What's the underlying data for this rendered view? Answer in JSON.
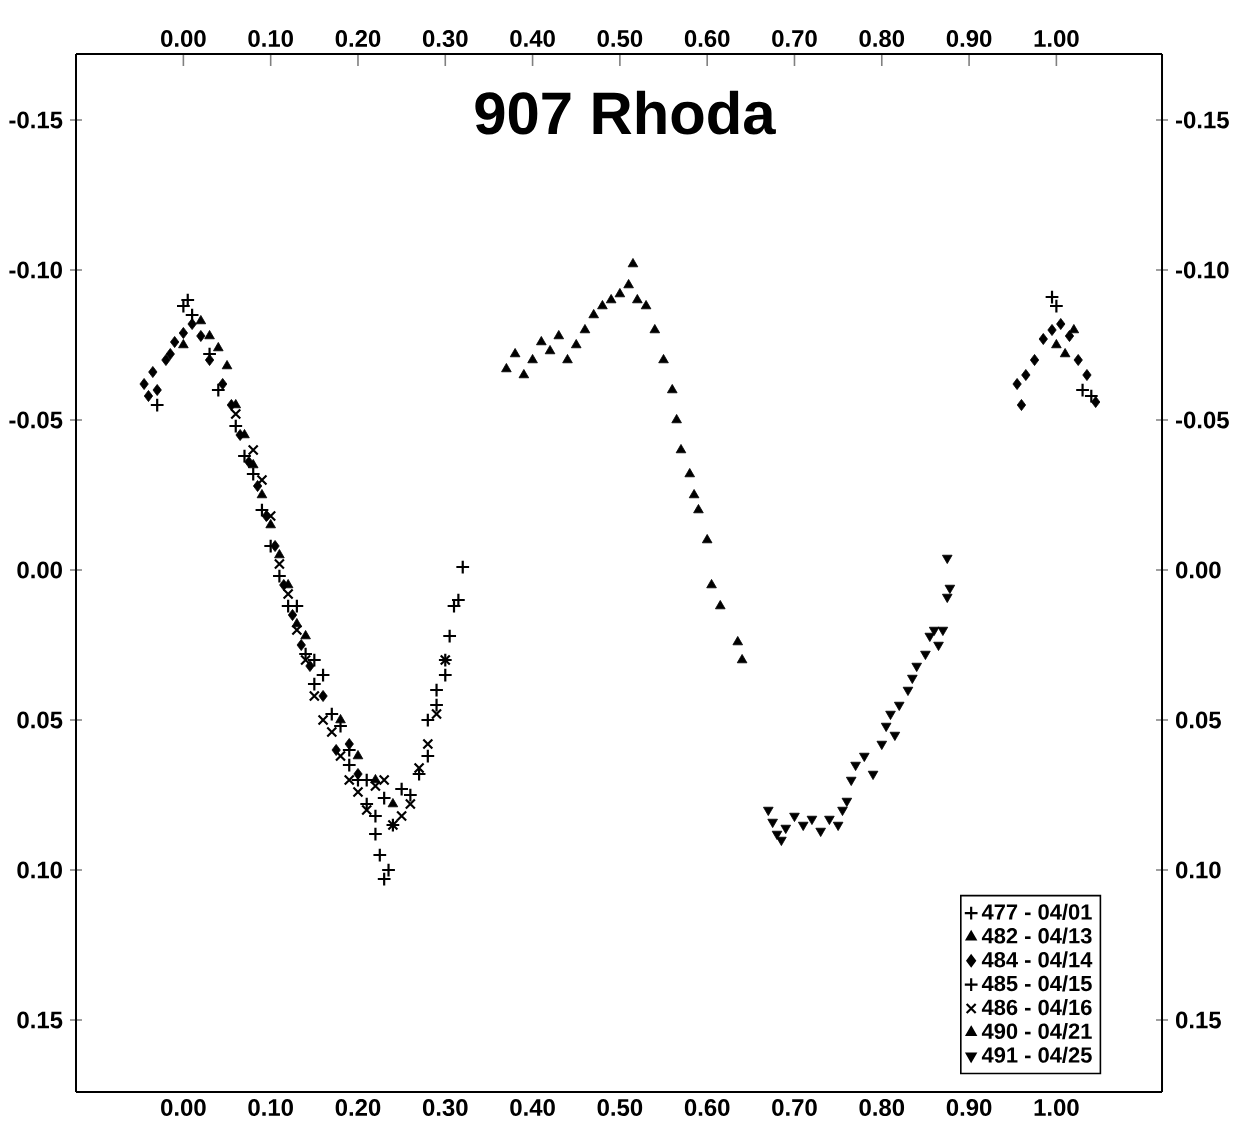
{
  "chart_data": {
    "type": "scatter",
    "title": "907 Rhoda",
    "xlim": [
      -0.123,
      1.121
    ],
    "ylim": [
      0.174,
      -0.172
    ],
    "xticks": [
      {
        "value": 0,
        "label": "0.00"
      },
      {
        "value": 0.1,
        "label": "0.10"
      },
      {
        "value": 0.2,
        "label": "0.20"
      },
      {
        "value": 0.3,
        "label": "0.30"
      },
      {
        "value": 0.4,
        "label": "0.40"
      },
      {
        "value": 0.5,
        "label": "0.50"
      },
      {
        "value": 0.6,
        "label": "0.60"
      },
      {
        "value": 0.7,
        "label": "0.70"
      },
      {
        "value": 0.8,
        "label": "0.80"
      },
      {
        "value": 0.9,
        "label": "0.90"
      },
      {
        "value": 1.0,
        "label": "1.00"
      }
    ],
    "yticks": [
      {
        "value": -0.15,
        "label": "-0.15"
      },
      {
        "value": -0.1,
        "label": "-0.10"
      },
      {
        "value": -0.05,
        "label": "-0.05"
      },
      {
        "value": 0,
        "label": "0.00"
      },
      {
        "value": 0.05,
        "label": "0.05"
      },
      {
        "value": 0.1,
        "label": "0.10"
      },
      {
        "value": 0.15,
        "label": "0.15"
      }
    ],
    "x2lim": [
      -0.123,
      1.121
    ],
    "y2lim": [
      0.174,
      -0.172
    ],
    "x2ticks": [
      {
        "value": 0,
        "label": "0.00"
      },
      {
        "value": 0.1,
        "label": "0.10"
      },
      {
        "value": 0.2,
        "label": "0.20"
      },
      {
        "value": 0.3,
        "label": "0.30"
      },
      {
        "value": 0.4,
        "label": "0.40"
      },
      {
        "value": 0.5,
        "label": "0.50"
      },
      {
        "value": 0.6,
        "label": "0.60"
      },
      {
        "value": 0.7,
        "label": "0.70"
      },
      {
        "value": 0.8,
        "label": "0.80"
      },
      {
        "value": 0.9,
        "label": "0.90"
      },
      {
        "value": 1.0,
        "label": "1.00"
      }
    ],
    "y2ticks": [
      {
        "value": -0.15,
        "label": "-0.15"
      },
      {
        "value": -0.1,
        "label": "-0.10"
      },
      {
        "value": -0.05,
        "label": "-0.05"
      },
      {
        "value": 0,
        "label": "0.00"
      },
      {
        "value": 0.05,
        "label": "0.05"
      },
      {
        "value": 0.1,
        "label": "0.10"
      },
      {
        "value": 0.15,
        "label": "0.15"
      }
    ],
    "legend": "bottom right",
    "series": [
      {
        "name": "477 - 04/01",
        "color": "#000000",
        "marker": "plus",
        "x": [
          -0.03,
          0.0,
          0.005,
          0.01,
          0.03,
          0.07,
          0.09,
          0.12,
          0.15,
          0.17,
          0.19,
          0.21,
          0.22,
          0.225,
          0.23,
          0.235,
          0.24,
          0.26,
          0.28,
          0.29,
          0.3,
          0.305,
          0.31,
          0.315,
          0.32,
          0.995,
          1.0,
          1.04,
          1.03
        ],
        "values": [
          -0.055,
          -0.088,
          -0.09,
          -0.085,
          -0.072,
          -0.038,
          -0.02,
          0.012,
          0.03,
          0.048,
          0.06,
          0.07,
          0.088,
          0.095,
          0.103,
          0.1,
          0.085,
          0.075,
          0.062,
          0.04,
          0.03,
          0.022,
          0.012,
          0.01,
          -0.001,
          -0.091,
          -0.088,
          -0.058,
          -0.06
        ]
      },
      {
        "name": "482 - 04/13",
        "color": "#000000",
        "marker": "triangle",
        "x": [
          0.0,
          0.02,
          0.03,
          0.04,
          0.05,
          0.06,
          0.07,
          0.08,
          0.09,
          0.1,
          0.11,
          0.12,
          0.13,
          0.14,
          0.16,
          0.18,
          0.2,
          0.22,
          0.24,
          1.0,
          1.02,
          1.01
        ],
        "values": [
          -0.075,
          -0.083,
          -0.078,
          -0.074,
          -0.068,
          -0.055,
          -0.045,
          -0.035,
          -0.025,
          -0.015,
          -0.005,
          0.005,
          0.018,
          0.022,
          null,
          0.05,
          0.062,
          0.07,
          0.078,
          -0.075,
          -0.08,
          -0.072
        ]
      },
      {
        "name": "484 - 04/14",
        "color": "#000000",
        "marker": "diamond",
        "x": [
          -0.045,
          -0.04,
          -0.035,
          -0.03,
          -0.02,
          -0.015,
          -0.01,
          0.0,
          0.01,
          0.02,
          0.03,
          0.045,
          0.055,
          0.065,
          0.075,
          0.085,
          0.095,
          0.105,
          0.115,
          0.125,
          0.135,
          0.145,
          0.16,
          0.175,
          0.19,
          0.2,
          0.955,
          0.96,
          0.965,
          0.975,
          0.985,
          0.995,
          1.005,
          1.015,
          1.025,
          1.035,
          1.045
        ],
        "values": [
          -0.062,
          -0.058,
          -0.066,
          -0.06,
          -0.07,
          -0.072,
          -0.076,
          -0.079,
          -0.082,
          -0.078,
          -0.07,
          -0.062,
          -0.055,
          -0.045,
          -0.036,
          -0.028,
          -0.018,
          -0.008,
          0.005,
          0.015,
          0.025,
          0.032,
          0.042,
          0.06,
          0.058,
          0.068,
          -0.062,
          -0.055,
          -0.065,
          -0.07,
          -0.077,
          -0.08,
          -0.082,
          -0.078,
          -0.07,
          -0.065,
          -0.056
        ]
      },
      {
        "name": "485 - 04/15",
        "color": "#000000",
        "marker": "plus",
        "x": [
          0.04,
          0.06,
          0.08,
          0.1,
          0.11,
          0.13,
          0.14,
          0.15,
          0.16,
          0.18,
          0.19,
          0.2,
          0.21,
          0.22,
          0.23,
          0.25,
          0.27,
          0.28,
          0.29,
          0.3
        ],
        "values": [
          -0.06,
          -0.048,
          -0.032,
          -0.008,
          0.002,
          0.012,
          0.028,
          0.038,
          0.035,
          0.052,
          0.065,
          0.07,
          0.078,
          0.082,
          0.076,
          0.073,
          0.068,
          0.05,
          0.045,
          0.035
        ]
      },
      {
        "name": "486 - 04/16",
        "color": "#000000",
        "marker": "cross",
        "x": [
          0.06,
          0.08,
          0.09,
          0.1,
          0.11,
          0.12,
          0.13,
          0.14,
          0.15,
          0.16,
          0.17,
          0.18,
          0.19,
          0.2,
          0.21,
          0.22,
          0.23,
          0.24,
          0.25,
          0.26,
          0.27,
          0.28,
          0.29,
          0.3
        ],
        "values": [
          -0.052,
          -0.04,
          -0.03,
          -0.018,
          -0.002,
          0.008,
          0.02,
          0.03,
          0.042,
          0.05,
          0.054,
          0.062,
          0.07,
          0.074,
          0.08,
          0.072,
          0.07,
          0.085,
          0.082,
          0.078,
          0.066,
          0.058,
          0.048,
          0.03
        ]
      },
      {
        "name": "490 - 04/21",
        "color": "#000000",
        "marker": "triangle",
        "x": [
          0.37,
          0.38,
          0.39,
          0.4,
          0.41,
          0.42,
          0.43,
          0.44,
          0.45,
          0.46,
          0.47,
          0.48,
          0.49,
          0.5,
          0.51,
          0.515,
          0.52,
          0.53,
          0.54,
          0.55,
          0.56,
          0.565,
          0.57,
          0.58,
          0.585,
          0.59,
          0.6,
          0.605,
          0.615,
          0.635,
          0.64
        ],
        "values": [
          -0.067,
          -0.072,
          -0.065,
          -0.07,
          -0.076,
          -0.073,
          -0.078,
          -0.07,
          -0.075,
          -0.08,
          -0.085,
          -0.088,
          -0.09,
          -0.092,
          -0.095,
          -0.102,
          -0.09,
          -0.088,
          -0.08,
          -0.07,
          -0.06,
          -0.05,
          -0.04,
          -0.032,
          -0.025,
          -0.02,
          -0.01,
          0.005,
          0.012,
          0.024,
          0.03
        ]
      },
      {
        "name": "491 - 04/25",
        "color": "#000000",
        "marker": "triangle-down",
        "x": [
          0.67,
          0.675,
          0.68,
          0.685,
          0.69,
          0.7,
          0.71,
          0.72,
          0.73,
          0.74,
          0.75,
          0.755,
          0.76,
          0.765,
          0.77,
          0.78,
          0.79,
          0.8,
          0.805,
          0.81,
          0.815,
          0.82,
          0.83,
          0.835,
          0.84,
          0.85,
          0.855,
          0.86,
          0.865,
          0.87,
          0.875,
          0.878,
          0.875
        ],
        "values": [
          0.08,
          0.084,
          0.088,
          0.09,
          0.086,
          0.082,
          0.085,
          0.083,
          0.087,
          0.083,
          0.085,
          0.08,
          0.077,
          0.07,
          0.065,
          0.062,
          0.068,
          0.058,
          0.052,
          0.048,
          0.055,
          0.045,
          0.04,
          0.036,
          0.032,
          0.028,
          0.022,
          0.02,
          0.025,
          0.02,
          0.009,
          0.006,
          -0.004
        ]
      }
    ]
  }
}
